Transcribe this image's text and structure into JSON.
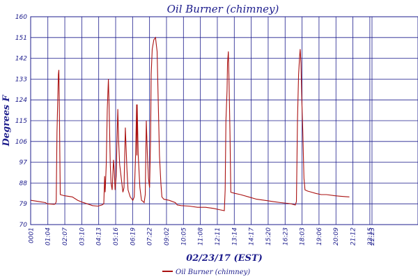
{
  "chart_data": {
    "type": "line",
    "title": "Oil Burner (chimney)",
    "xlabel": "02/23/17 (EST)",
    "ylabel": "Degrees F",
    "ylim": [
      70,
      160
    ],
    "yticks": [
      70,
      79,
      88,
      97,
      106,
      115,
      124,
      133,
      142,
      151,
      160
    ],
    "xlim": [
      0,
      1440
    ],
    "x_ticks": [
      {
        "label": "0001",
        "t": 1
      },
      {
        "label": "01:04",
        "t": 64
      },
      {
        "label": "02:07",
        "t": 127
      },
      {
        "label": "03:10",
        "t": 190
      },
      {
        "label": "04:13",
        "t": 253
      },
      {
        "label": "05:16",
        "t": 316
      },
      {
        "label": "06:19",
        "t": 379
      },
      {
        "label": "07:22",
        "t": 442
      },
      {
        "label": "09:02",
        "t": 505
      },
      {
        "label": "10:05",
        "t": 568
      },
      {
        "label": "11:08",
        "t": 631
      },
      {
        "label": "12:11",
        "t": 694
      },
      {
        "label": "13:14",
        "t": 757
      },
      {
        "label": "14:17",
        "t": 820
      },
      {
        "label": "15:20",
        "t": 883
      },
      {
        "label": "16:23",
        "t": 946
      },
      {
        "label": "18:03",
        "t": 1009
      },
      {
        "label": "19:06",
        "t": 1072
      },
      {
        "label": "20:09",
        "t": 1135
      },
      {
        "label": "21:12",
        "t": 1198
      },
      {
        "label": "22:15",
        "t": 1261
      },
      {
        "label": "22:23",
        "t": 1269
      }
    ],
    "grid": true,
    "legend_position": "bottom",
    "series": [
      {
        "name": "Oil Burner (chimney)",
        "color": "#aa1111",
        "points": [
          [
            1,
            80.5
          ],
          [
            30,
            80
          ],
          [
            55,
            79.5
          ],
          [
            62,
            79
          ],
          [
            88,
            78.8
          ],
          [
            92,
            79
          ],
          [
            95,
            80
          ],
          [
            98,
            110
          ],
          [
            103,
            135
          ],
          [
            105,
            137
          ],
          [
            107,
            118
          ],
          [
            110,
            83
          ],
          [
            125,
            82.5
          ],
          [
            155,
            82
          ],
          [
            175,
            80.5
          ],
          [
            190,
            79.8
          ],
          [
            210,
            79
          ],
          [
            230,
            78.2
          ],
          [
            250,
            78
          ],
          [
            265,
            78.5
          ],
          [
            272,
            79
          ],
          [
            275,
            91
          ],
          [
            277,
            84
          ],
          [
            281,
            96
          ],
          [
            285,
            120
          ],
          [
            289,
            133
          ],
          [
            292,
            120
          ],
          [
            296,
            96
          ],
          [
            299,
            88
          ],
          [
            303,
            85
          ],
          [
            308,
            98
          ],
          [
            311,
            93
          ],
          [
            314,
            85
          ],
          [
            318,
            91
          ],
          [
            321,
            106
          ],
          [
            324,
            120
          ],
          [
            327,
            106
          ],
          [
            331,
            96
          ],
          [
            337,
            90
          ],
          [
            343,
            84
          ],
          [
            347,
            86
          ],
          [
            352,
            112
          ],
          [
            358,
            94
          ],
          [
            362,
            85
          ],
          [
            370,
            82
          ],
          [
            380,
            80.5
          ],
          [
            385,
            82
          ],
          [
            390,
            100
          ],
          [
            394,
            122
          ],
          [
            395,
            100
          ],
          [
            396,
            122
          ],
          [
            400,
            100
          ],
          [
            406,
            86
          ],
          [
            412,
            80.5
          ],
          [
            418,
            80
          ],
          [
            422,
            79.5
          ],
          [
            426,
            83
          ],
          [
            430,
            115
          ],
          [
            434,
            100
          ],
          [
            438,
            90
          ],
          [
            442,
            86
          ],
          [
            446,
            108
          ],
          [
            448,
            135
          ],
          [
            452,
            146
          ],
          [
            458,
            150
          ],
          [
            464,
            151
          ],
          [
            470,
            145
          ],
          [
            474,
            125
          ],
          [
            479,
            100
          ],
          [
            484,
            88
          ],
          [
            488,
            82
          ],
          [
            495,
            81
          ],
          [
            515,
            80.5
          ],
          [
            538,
            79.5
          ],
          [
            545,
            78.5
          ],
          [
            560,
            78.2
          ],
          [
            590,
            78
          ],
          [
            620,
            77.5
          ],
          [
            650,
            77.5
          ],
          [
            680,
            77
          ],
          [
            700,
            76.5
          ],
          [
            720,
            76
          ],
          [
            723,
            85
          ],
          [
            726,
            115
          ],
          [
            730,
            128
          ],
          [
            732,
            140
          ],
          [
            735,
            145
          ],
          [
            738,
            130
          ],
          [
            741,
            110
          ],
          [
            744,
            84
          ],
          [
            760,
            83.5
          ],
          [
            780,
            83
          ],
          [
            810,
            82
          ],
          [
            840,
            81
          ],
          [
            870,
            80.5
          ],
          [
            900,
            80
          ],
          [
            930,
            79.5
          ],
          [
            955,
            79.2
          ],
          [
            968,
            79
          ],
          [
            974,
            78.8
          ],
          [
            984,
            78.5
          ],
          [
            988,
            80
          ],
          [
            992,
            115
          ],
          [
            996,
            135
          ],
          [
            1000,
            143
          ],
          [
            1002,
            146
          ],
          [
            1005,
            140
          ],
          [
            1008,
            124
          ],
          [
            1012,
            110
          ],
          [
            1016,
            90
          ],
          [
            1020,
            85
          ],
          [
            1030,
            84.5
          ],
          [
            1045,
            84
          ],
          [
            1060,
            83.5
          ],
          [
            1080,
            83
          ],
          [
            1100,
            83
          ],
          [
            1130,
            82.5
          ],
          [
            1150,
            82.3
          ],
          [
            1170,
            82.1
          ],
          [
            1185,
            82
          ]
        ]
      }
    ]
  }
}
